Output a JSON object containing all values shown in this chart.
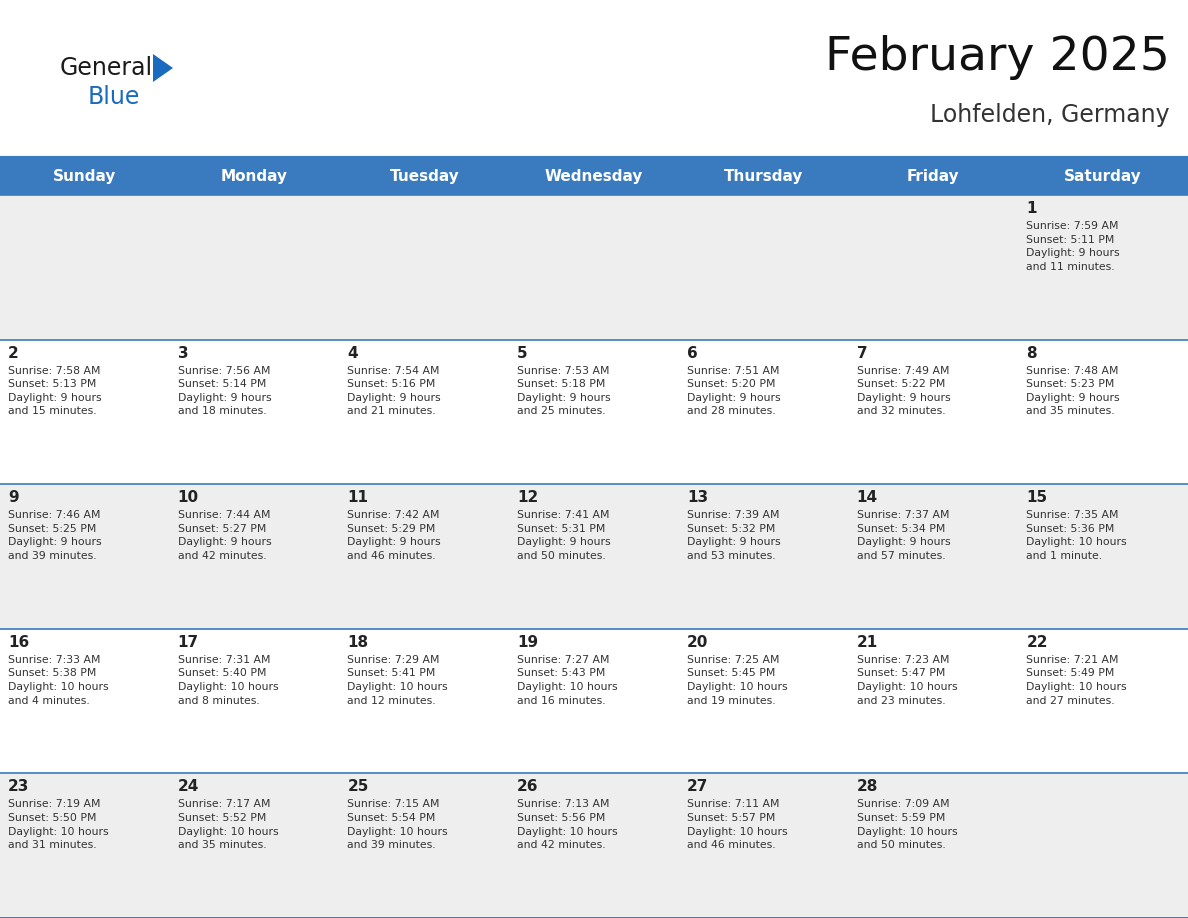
{
  "title": "February 2025",
  "subtitle": "Lohfelden, Germany",
  "header_bg": "#3a7bbf",
  "header_text_color": "#ffffff",
  "cell_bg_odd": "#eeeeee",
  "cell_bg_even": "#ffffff",
  "border_color": "#3a7bbf",
  "text_color": "#222222",
  "info_color": "#333333",
  "day_headers": [
    "Sunday",
    "Monday",
    "Tuesday",
    "Wednesday",
    "Thursday",
    "Friday",
    "Saturday"
  ],
  "weeks": [
    [
      {
        "day": null,
        "info": null
      },
      {
        "day": null,
        "info": null
      },
      {
        "day": null,
        "info": null
      },
      {
        "day": null,
        "info": null
      },
      {
        "day": null,
        "info": null
      },
      {
        "day": null,
        "info": null
      },
      {
        "day": 1,
        "info": "Sunrise: 7:59 AM\nSunset: 5:11 PM\nDaylight: 9 hours\nand 11 minutes."
      }
    ],
    [
      {
        "day": 2,
        "info": "Sunrise: 7:58 AM\nSunset: 5:13 PM\nDaylight: 9 hours\nand 15 minutes."
      },
      {
        "day": 3,
        "info": "Sunrise: 7:56 AM\nSunset: 5:14 PM\nDaylight: 9 hours\nand 18 minutes."
      },
      {
        "day": 4,
        "info": "Sunrise: 7:54 AM\nSunset: 5:16 PM\nDaylight: 9 hours\nand 21 minutes."
      },
      {
        "day": 5,
        "info": "Sunrise: 7:53 AM\nSunset: 5:18 PM\nDaylight: 9 hours\nand 25 minutes."
      },
      {
        "day": 6,
        "info": "Sunrise: 7:51 AM\nSunset: 5:20 PM\nDaylight: 9 hours\nand 28 minutes."
      },
      {
        "day": 7,
        "info": "Sunrise: 7:49 AM\nSunset: 5:22 PM\nDaylight: 9 hours\nand 32 minutes."
      },
      {
        "day": 8,
        "info": "Sunrise: 7:48 AM\nSunset: 5:23 PM\nDaylight: 9 hours\nand 35 minutes."
      }
    ],
    [
      {
        "day": 9,
        "info": "Sunrise: 7:46 AM\nSunset: 5:25 PM\nDaylight: 9 hours\nand 39 minutes."
      },
      {
        "day": 10,
        "info": "Sunrise: 7:44 AM\nSunset: 5:27 PM\nDaylight: 9 hours\nand 42 minutes."
      },
      {
        "day": 11,
        "info": "Sunrise: 7:42 AM\nSunset: 5:29 PM\nDaylight: 9 hours\nand 46 minutes."
      },
      {
        "day": 12,
        "info": "Sunrise: 7:41 AM\nSunset: 5:31 PM\nDaylight: 9 hours\nand 50 minutes."
      },
      {
        "day": 13,
        "info": "Sunrise: 7:39 AM\nSunset: 5:32 PM\nDaylight: 9 hours\nand 53 minutes."
      },
      {
        "day": 14,
        "info": "Sunrise: 7:37 AM\nSunset: 5:34 PM\nDaylight: 9 hours\nand 57 minutes."
      },
      {
        "day": 15,
        "info": "Sunrise: 7:35 AM\nSunset: 5:36 PM\nDaylight: 10 hours\nand 1 minute."
      }
    ],
    [
      {
        "day": 16,
        "info": "Sunrise: 7:33 AM\nSunset: 5:38 PM\nDaylight: 10 hours\nand 4 minutes."
      },
      {
        "day": 17,
        "info": "Sunrise: 7:31 AM\nSunset: 5:40 PM\nDaylight: 10 hours\nand 8 minutes."
      },
      {
        "day": 18,
        "info": "Sunrise: 7:29 AM\nSunset: 5:41 PM\nDaylight: 10 hours\nand 12 minutes."
      },
      {
        "day": 19,
        "info": "Sunrise: 7:27 AM\nSunset: 5:43 PM\nDaylight: 10 hours\nand 16 minutes."
      },
      {
        "day": 20,
        "info": "Sunrise: 7:25 AM\nSunset: 5:45 PM\nDaylight: 10 hours\nand 19 minutes."
      },
      {
        "day": 21,
        "info": "Sunrise: 7:23 AM\nSunset: 5:47 PM\nDaylight: 10 hours\nand 23 minutes."
      },
      {
        "day": 22,
        "info": "Sunrise: 7:21 AM\nSunset: 5:49 PM\nDaylight: 10 hours\nand 27 minutes."
      }
    ],
    [
      {
        "day": 23,
        "info": "Sunrise: 7:19 AM\nSunset: 5:50 PM\nDaylight: 10 hours\nand 31 minutes."
      },
      {
        "day": 24,
        "info": "Sunrise: 7:17 AM\nSunset: 5:52 PM\nDaylight: 10 hours\nand 35 minutes."
      },
      {
        "day": 25,
        "info": "Sunrise: 7:15 AM\nSunset: 5:54 PM\nDaylight: 10 hours\nand 39 minutes."
      },
      {
        "day": 26,
        "info": "Sunrise: 7:13 AM\nSunset: 5:56 PM\nDaylight: 10 hours\nand 42 minutes."
      },
      {
        "day": 27,
        "info": "Sunrise: 7:11 AM\nSunset: 5:57 PM\nDaylight: 10 hours\nand 46 minutes."
      },
      {
        "day": 28,
        "info": "Sunrise: 7:09 AM\nSunset: 5:59 PM\nDaylight: 10 hours\nand 50 minutes."
      },
      {
        "day": null,
        "info": null
      }
    ]
  ],
  "logo_text1": "General",
  "logo_text2": "Blue",
  "logo_color1": "#1a1a1a",
  "logo_color2": "#1a6bbf",
  "logo_triangle_color": "#1a6bbf",
  "fig_width": 11.88,
  "fig_height": 9.18,
  "dpi": 100
}
